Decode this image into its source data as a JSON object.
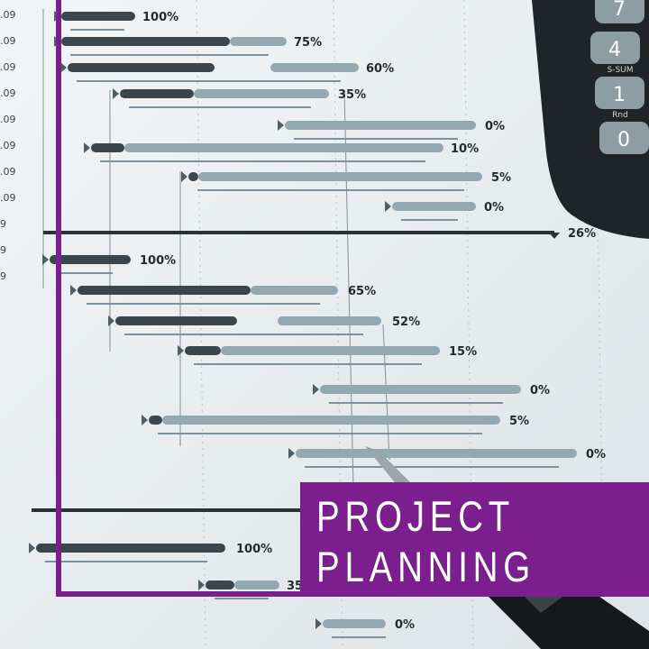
{
  "overlay": {
    "title_line1": "PROJECT",
    "title_line2": "PLANNING",
    "accent_color": "#7b1f8e"
  },
  "gantt_photo": {
    "date_labels": [
      ".09",
      ".09",
      ".09",
      ".09",
      ".09",
      ".09",
      ".09",
      ".09",
      "9",
      "9",
      "9"
    ],
    "percent_labels": [
      "100%",
      "75%",
      "60%",
      "35%",
      "0%",
      "10%",
      "5%",
      "0%",
      "26%",
      "100%",
      "65%",
      "52%",
      "15%",
      "0%",
      "5%",
      "0%",
      "",
      "100%",
      "35",
      "0%"
    ]
  },
  "calculator": {
    "keys": [
      "7",
      "4",
      "1",
      "0"
    ],
    "key_captions": [
      "S-SUM",
      "Rnd"
    ]
  }
}
